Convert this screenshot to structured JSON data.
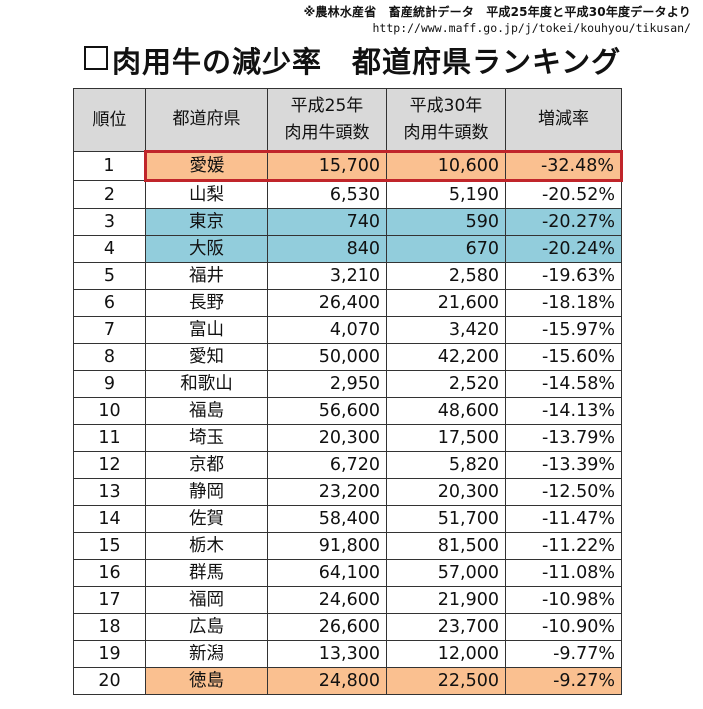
{
  "source": {
    "note": "※農林水産省　畜産統計データ　平成25年度と平成30年度データより",
    "url": "http://www.maff.go.jp/j/tokei/kouhyou/tikusan/"
  },
  "title": "肉用牛の減少率　都道府県ランキング",
  "headers": {
    "rank": "順位",
    "pref": "都道府県",
    "h25_line1": "平成25年",
    "h25_line2": "肉用牛頭数",
    "h30_line1": "平成30年",
    "h30_line2": "肉用牛頭数",
    "rate": "増減率"
  },
  "highlight_colors": {
    "orange": "#fac090",
    "blue": "#92cddc",
    "outline": "#c0252a",
    "header": "#d9d9d9"
  },
  "rows": [
    {
      "rank": "1",
      "pref": "愛媛",
      "h25": "15,700",
      "h30": "10,600",
      "rate": "-32.48%",
      "hl": "orange"
    },
    {
      "rank": "2",
      "pref": "山梨",
      "h25": "6,530",
      "h30": "5,190",
      "rate": "-20.52%",
      "hl": ""
    },
    {
      "rank": "3",
      "pref": "東京",
      "h25": "740",
      "h30": "590",
      "rate": "-20.27%",
      "hl": "blue"
    },
    {
      "rank": "4",
      "pref": "大阪",
      "h25": "840",
      "h30": "670",
      "rate": "-20.24%",
      "hl": "blue"
    },
    {
      "rank": "5",
      "pref": "福井",
      "h25": "3,210",
      "h30": "2,580",
      "rate": "-19.63%",
      "hl": ""
    },
    {
      "rank": "6",
      "pref": "長野",
      "h25": "26,400",
      "h30": "21,600",
      "rate": "-18.18%",
      "hl": ""
    },
    {
      "rank": "7",
      "pref": "富山",
      "h25": "4,070",
      "h30": "3,420",
      "rate": "-15.97%",
      "hl": ""
    },
    {
      "rank": "8",
      "pref": "愛知",
      "h25": "50,000",
      "h30": "42,200",
      "rate": "-15.60%",
      "hl": ""
    },
    {
      "rank": "9",
      "pref": "和歌山",
      "h25": "2,950",
      "h30": "2,520",
      "rate": "-14.58%",
      "hl": ""
    },
    {
      "rank": "10",
      "pref": "福島",
      "h25": "56,600",
      "h30": "48,600",
      "rate": "-14.13%",
      "hl": ""
    },
    {
      "rank": "11",
      "pref": "埼玉",
      "h25": "20,300",
      "h30": "17,500",
      "rate": "-13.79%",
      "hl": ""
    },
    {
      "rank": "12",
      "pref": "京都",
      "h25": "6,720",
      "h30": "5,820",
      "rate": "-13.39%",
      "hl": ""
    },
    {
      "rank": "13",
      "pref": "静岡",
      "h25": "23,200",
      "h30": "20,300",
      "rate": "-12.50%",
      "hl": ""
    },
    {
      "rank": "14",
      "pref": "佐賀",
      "h25": "58,400",
      "h30": "51,700",
      "rate": "-11.47%",
      "hl": ""
    },
    {
      "rank": "15",
      "pref": "栃木",
      "h25": "91,800",
      "h30": "81,500",
      "rate": "-11.22%",
      "hl": ""
    },
    {
      "rank": "16",
      "pref": "群馬",
      "h25": "64,100",
      "h30": "57,000",
      "rate": "-11.08%",
      "hl": ""
    },
    {
      "rank": "17",
      "pref": "福岡",
      "h25": "24,600",
      "h30": "21,900",
      "rate": "-10.98%",
      "hl": ""
    },
    {
      "rank": "18",
      "pref": "広島",
      "h25": "26,600",
      "h30": "23,700",
      "rate": "-10.90%",
      "hl": ""
    },
    {
      "rank": "19",
      "pref": "新潟",
      "h25": "13,300",
      "h30": "12,000",
      "rate": "-9.77%",
      "hl": ""
    },
    {
      "rank": "20",
      "pref": "徳島",
      "h25": "24,800",
      "h30": "22,500",
      "rate": "-9.27%",
      "hl": "orange"
    }
  ]
}
